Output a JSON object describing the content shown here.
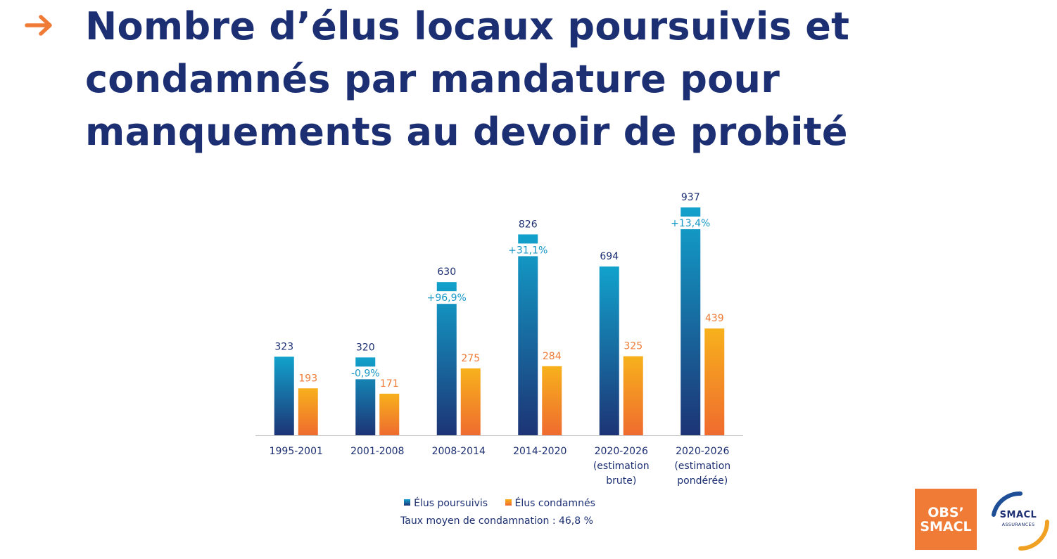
{
  "title_lines": [
    "Nombre d’élus locaux poursuivis et",
    "condamnés par mandature pour",
    "manquements au devoir de probité"
  ],
  "colors": {
    "title": "#1c2f72",
    "arrow": "#ef7b36",
    "poursuivis_top": "#12a2cc",
    "poursuivis_bottom": "#1d3475",
    "condamnes_top": "#f7b11c",
    "condamnes_bottom": "#ef6b2f",
    "growth_label": "#1496c6",
    "condamnes_label": "#ef7b36"
  },
  "chart_data": {
    "type": "bar",
    "categories": [
      [
        "1995-2001"
      ],
      [
        "2001-2008"
      ],
      [
        "2008-2014"
      ],
      [
        "2014-2020"
      ],
      [
        "2020-2026",
        "(estimation",
        "brute)"
      ],
      [
        "2020-2026",
        "(estimation",
        "pondérée)"
      ]
    ],
    "series": [
      {
        "name": "Élus poursuivis",
        "values": [
          323,
          320,
          630,
          826,
          694,
          937
        ]
      },
      {
        "name": "Élus condamnés",
        "values": [
          193,
          171,
          275,
          284,
          325,
          439
        ]
      }
    ],
    "growth_labels": [
      null,
      "-0,9%",
      "+96,9%",
      "+31,1%",
      null,
      "+13,4%"
    ],
    "ylim": [
      0,
      960
    ],
    "legend_position": "bottom",
    "grid": false,
    "note": "Taux moyen de condamnation : 46,8 %"
  },
  "logos": {
    "obs_line1": "OBS’",
    "obs_line2": "SMACL",
    "smacl_name": "SMACL",
    "smacl_sub": "ASSURANCES"
  }
}
